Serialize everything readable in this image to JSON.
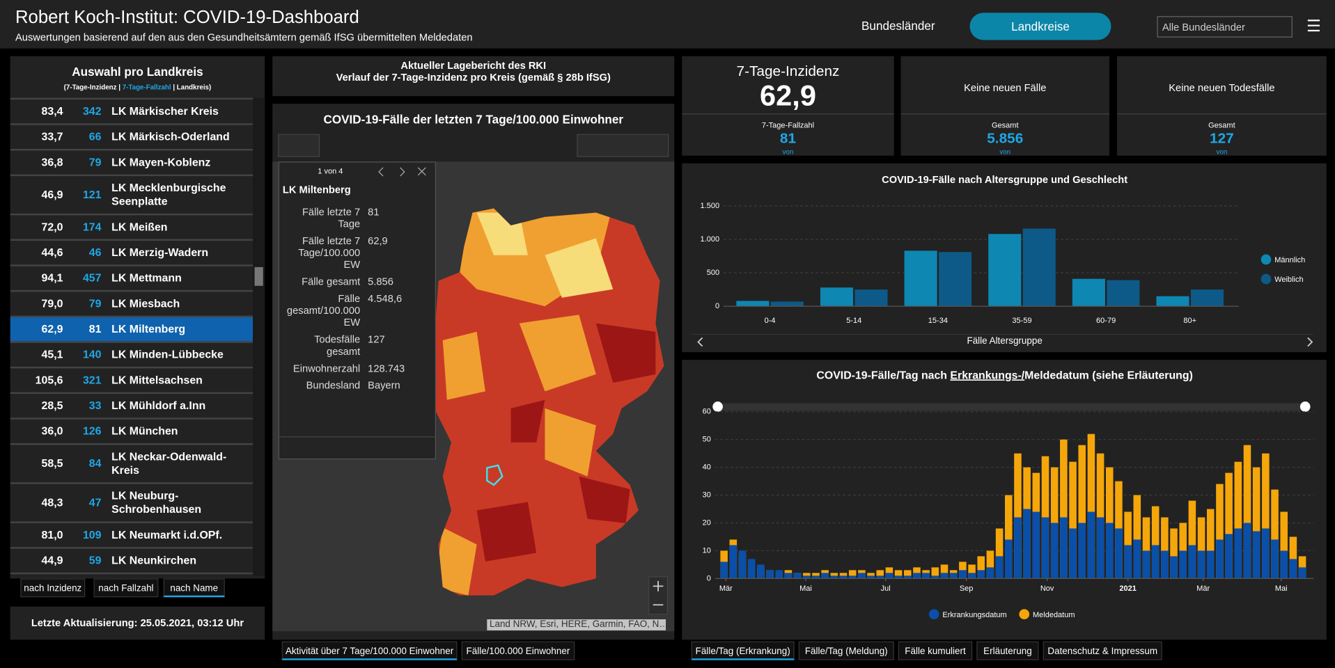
{
  "header": {
    "title": "Robert Koch-Institut: COVID-19-Dashboard",
    "subtitle": "Auswertungen basierend auf den aus den Gesundheitsämtern gemäß IfSG übermittelten Meldedaten",
    "tabs": [
      "Bundesländer",
      "Landkreise"
    ],
    "active_tab": 1,
    "select": "Alle Bundesländer"
  },
  "sidebar": {
    "title": "Auswahl pro Landkreis",
    "legend": [
      "(7-Tage-Inzidenz | ",
      "7-Tage-Fallzahl",
      " | Landkreis)"
    ],
    "rows": [
      [
        "83,4",
        "342",
        "LK Märkischer Kreis"
      ],
      [
        "33,7",
        "66",
        "LK Märkisch-Oderland"
      ],
      [
        "36,8",
        "79",
        "LK Mayen-Koblenz"
      ],
      [
        "46,9",
        "121",
        "LK Mecklenburgische Seenplatte"
      ],
      [
        "72,0",
        "174",
        "LK Meißen"
      ],
      [
        "44,6",
        "46",
        "LK Merzig-Wadern"
      ],
      [
        "94,1",
        "457",
        "LK Mettmann"
      ],
      [
        "79,0",
        "79",
        "LK Miesbach"
      ],
      [
        "62,9",
        "81",
        "LK Miltenberg"
      ],
      [
        "45,1",
        "140",
        "LK Minden-Lübbecke"
      ],
      [
        "105,6",
        "321",
        "LK Mittelsachsen"
      ],
      [
        "28,5",
        "33",
        "LK Mühldorf a.Inn"
      ],
      [
        "36,0",
        "126",
        "LK München"
      ],
      [
        "58,5",
        "84",
        "LK Neckar-Odenwald-Kreis"
      ],
      [
        "48,3",
        "47",
        "LK Neuburg-Schrobenhausen"
      ],
      [
        "81,0",
        "109",
        "LK Neumarkt i.d.OPf."
      ],
      [
        "44,9",
        "59",
        "LK Neunkirchen"
      ]
    ],
    "selected_row": 8,
    "sort_buttons": [
      "nach Inzidenz",
      "nach Fallzahl",
      "nach Name"
    ],
    "active_sort": 2,
    "update_label": "Letzte Aktualisierung:",
    "update_value": "25.05.2021, 03:12 Uhr"
  },
  "report": {
    "line1": "Aktueller Lagebericht des RKI",
    "line2": "Verlauf der 7-Tage-Inzidenz pro Kreis (gemäß § 28b IfSG)"
  },
  "map": {
    "title": "COVID-19-Fälle der letzten 7 Tage/100.000 Einwohner",
    "attribution": "Land NRW, Esri, HERE, Garmin, FAO, N…",
    "popup": {
      "pager": "1 von 4",
      "name": "LK Miltenberg",
      "fields": [
        [
          "Fälle letzte 7 Tage",
          "81"
        ],
        [
          "Fälle letzte 7 Tage/100.000 EW",
          "62,9"
        ],
        [
          "Fälle gesamt",
          "5.856"
        ],
        [
          "Fälle gesamt/100.000 EW",
          "4.548,6"
        ],
        [
          "Todesfälle gesamt",
          "127"
        ],
        [
          "Einwohnerzahl",
          "128.743"
        ],
        [
          "Bundesland",
          "Bayern"
        ]
      ]
    },
    "tabs": [
      "Aktivität über 7 Tage/100.000 Einwohner",
      "Fälle/100.000 Einwohner"
    ],
    "active_tab": 0
  },
  "kpis": [
    {
      "title": "7-Tage-Inzidenz",
      "value": "62,9",
      "sub_label": "7-Tage-Fallzahl",
      "sub_value": "81",
      "sub_note": "von"
    },
    {
      "title": "Keine neuen Fälle",
      "sub_label": "Gesamt",
      "sub_value": "5.856",
      "sub_note": "von"
    },
    {
      "title": "Keine neuen Todesfälle",
      "sub_label": "Gesamt",
      "sub_value": "127",
      "sub_note": "von"
    }
  ],
  "bottom_tabs": [
    "Fälle/Tag (Erkrankung)",
    "Fälle/Tag (Meldung)",
    "Fälle kumuliert",
    "Erläuterung",
    "Datenschutz & Impressum"
  ],
  "active_bottom_tab": 0,
  "chart_data": [
    {
      "type": "bar",
      "title": "COVID-19-Fälle nach Altersgruppe und Geschlecht",
      "x_label": "Fälle Altersgruppe",
      "categories": [
        "0-4",
        "5-14",
        "15-34",
        "35-59",
        "60-79",
        "80+"
      ],
      "series": [
        {
          "name": "Männlich",
          "color": "#0e87b3",
          "values": [
            80,
            280,
            830,
            1080,
            410,
            150
          ]
        },
        {
          "name": "Weiblich",
          "color": "#0d5a88",
          "values": [
            70,
            250,
            810,
            1160,
            390,
            250
          ]
        }
      ],
      "ylim": [
        0,
        1500
      ],
      "yticks": [
        0,
        500,
        {
          "value": 1000,
          "label": "1.000"
        },
        {
          "value": 1500,
          "label": "1.500"
        }
      ],
      "grid": true
    },
    {
      "type": "bar",
      "title_parts": [
        "COVID-19-Fälle/Tag nach ",
        "Erkrankungs-/",
        "Meldedatum (siehe Erläuterung)"
      ],
      "categories": [
        null,
        null,
        null,
        null,
        null,
        null,
        null,
        null,
        null,
        null,
        null,
        null,
        null,
        null,
        null,
        null,
        null,
        null,
        null,
        null,
        null,
        null,
        null,
        null,
        null,
        null,
        null,
        null,
        null,
        null,
        null,
        null,
        null,
        null,
        null,
        null,
        null,
        null,
        null,
        null,
        null,
        null,
        null,
        null,
        null,
        null,
        null,
        null,
        null,
        null,
        null,
        null,
        null,
        null,
        null,
        null,
        null,
        null,
        null,
        null,
        null,
        null,
        null,
        null
      ],
      "series": [
        {
          "name": "Erkrankungsdatum",
          "color": "#0a4fa8",
          "values": [
            6,
            12,
            10,
            7,
            5,
            3,
            3,
            2,
            2,
            1,
            1,
            2,
            1,
            1,
            1,
            2,
            1,
            1,
            2,
            1,
            1,
            2,
            2,
            1,
            2,
            2,
            3,
            2,
            3,
            4,
            8,
            14,
            22,
            25,
            24,
            22,
            20,
            22,
            18,
            20,
            24,
            22,
            20,
            18,
            12,
            14,
            10,
            12,
            10,
            8,
            10,
            12,
            10,
            10,
            14,
            16,
            18,
            20,
            17,
            18,
            14,
            10,
            7,
            4
          ]
        },
        {
          "name": "Meldedatum",
          "color": "#f5a60a",
          "values": [
            10,
            14,
            9,
            6,
            4,
            3,
            2,
            3,
            2,
            2,
            2,
            3,
            2,
            2,
            3,
            3,
            2,
            3,
            4,
            3,
            3,
            4,
            3,
            4,
            5,
            3,
            6,
            5,
            8,
            10,
            18,
            30,
            45,
            40,
            38,
            44,
            40,
            50,
            42,
            48,
            52,
            45,
            40,
            35,
            24,
            30,
            22,
            26,
            22,
            18,
            20,
            28,
            22,
            25,
            34,
            38,
            42,
            48,
            40,
            45,
            32,
            24,
            15,
            8
          ]
        }
      ],
      "xlim": [
        0,
        64
      ],
      "xticks": [
        {
          "value": 0.7,
          "label": "Mär"
        },
        {
          "value": 9.4,
          "label": "Mai"
        },
        {
          "value": 18.1,
          "label": "Jul"
        },
        {
          "value": 26.9,
          "label": "Sep"
        },
        {
          "value": 35.7,
          "label": "Nov"
        },
        {
          "value": 44.5,
          "label": "2021"
        },
        {
          "value": 52.7,
          "label": "Mär"
        },
        {
          "value": 61.2,
          "label": "Mai"
        }
      ],
      "ylim": [
        0,
        60
      ],
      "yticks": [
        0,
        10,
        20,
        30,
        40,
        50,
        60
      ],
      "grid": true
    }
  ]
}
